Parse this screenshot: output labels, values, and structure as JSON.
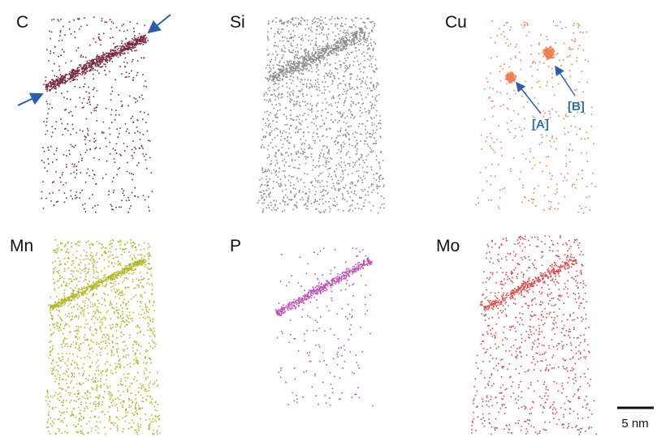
{
  "panels": [
    {
      "label": "C",
      "color": "#7a2a44"
    },
    {
      "label": "Si",
      "color": "#8c8c8c"
    },
    {
      "label": "Cu",
      "color": "#f08050"
    },
    {
      "label": "Mn",
      "color": "#b5b82a"
    },
    {
      "label": "P",
      "color": "#c050b8"
    },
    {
      "label": "Mo",
      "color": "#e04848"
    }
  ],
  "annotations": [
    "[A]",
    "[B]"
  ],
  "scale_bar": "5 nm"
}
